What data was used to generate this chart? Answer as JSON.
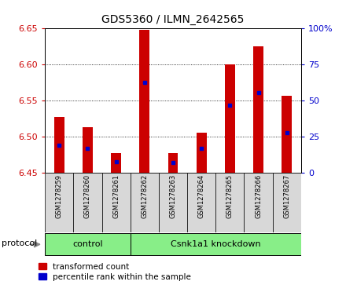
{
  "title": "GDS5360 / ILMN_2642565",
  "samples": [
    "GSM1278259",
    "GSM1278260",
    "GSM1278261",
    "GSM1278262",
    "GSM1278263",
    "GSM1278264",
    "GSM1278265",
    "GSM1278266",
    "GSM1278267"
  ],
  "bar_tops": [
    6.527,
    6.513,
    6.477,
    6.648,
    6.477,
    6.505,
    6.6,
    6.625,
    6.557
  ],
  "bar_base": 6.45,
  "blue_markers": [
    6.488,
    6.483,
    6.465,
    6.575,
    6.464,
    6.483,
    6.543,
    6.561,
    6.505
  ],
  "ylim": [
    6.45,
    6.65
  ],
  "y2lim": [
    0,
    100
  ],
  "yticks": [
    6.45,
    6.5,
    6.55,
    6.6,
    6.65
  ],
  "y2ticks": [
    0,
    25,
    50,
    75,
    100
  ],
  "bar_color": "#cc0000",
  "blue_color": "#0000cc",
  "control_label": "control",
  "knockdown_label": "Csnk1a1 knockdown",
  "group_color": "#88ee88",
  "protocol_label": "protocol",
  "legend_transformed": "transformed count",
  "legend_percentile": "percentile rank within the sample",
  "tick_label_color_left": "#cc0000",
  "tick_label_color_right": "#0000cc",
  "n_control": 3,
  "n_knockdown": 6,
  "bar_width": 0.35
}
